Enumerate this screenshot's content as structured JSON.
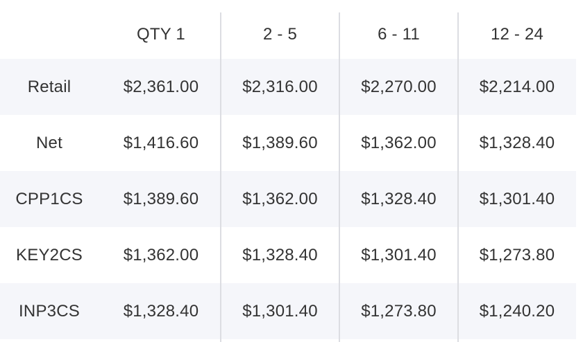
{
  "table": {
    "headers": [
      "",
      "QTY 1",
      "2 - 5",
      "6 - 11",
      "12 - 24"
    ],
    "rows": [
      {
        "label": "Retail",
        "values": [
          "$2,361.00",
          "$2,316.00",
          "$2,270.00",
          "$2,214.00"
        ]
      },
      {
        "label": "Net",
        "values": [
          "$1,416.60",
          "$1,389.60",
          "$1,362.00",
          "$1,328.40"
        ]
      },
      {
        "label": "CPP1CS",
        "values": [
          "$1,389.60",
          "$1,362.00",
          "$1,328.40",
          "$1,301.40"
        ]
      },
      {
        "label": "KEY2CS",
        "values": [
          "$1,362.00",
          "$1,328.40",
          "$1,301.40",
          "$1,273.80"
        ]
      },
      {
        "label": "INP3CS",
        "values": [
          "$1,328.40",
          "$1,301.40",
          "$1,273.80",
          "$1,240.20"
        ]
      }
    ]
  },
  "colors": {
    "text": "#333333",
    "row_stripe": "#f5f6fa",
    "divider": "#dcdde2"
  }
}
